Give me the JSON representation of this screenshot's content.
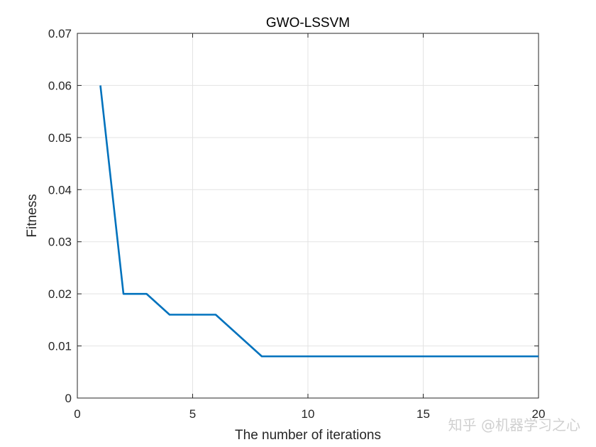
{
  "chart_data": {
    "type": "line",
    "title": "GWO-LSSVM",
    "xlabel": "The number of iterations",
    "ylabel": "Fitness",
    "xlim": [
      0,
      20
    ],
    "ylim": [
      0,
      0.07
    ],
    "xticks": [
      0,
      5,
      10,
      15,
      20
    ],
    "yticks": [
      0,
      0.01,
      0.02,
      0.03,
      0.04,
      0.05,
      0.06,
      0.07
    ],
    "xtick_labels": [
      "0",
      "5",
      "10",
      "15",
      "20"
    ],
    "ytick_labels": [
      "0",
      "0.01",
      "0.02",
      "0.03",
      "0.04",
      "0.05",
      "0.06",
      "0.07"
    ],
    "grid": true,
    "series": [
      {
        "x": [
          1,
          2,
          3,
          4,
          5,
          6,
          7,
          8,
          9,
          10,
          11,
          12,
          13,
          14,
          15,
          16,
          17,
          18,
          19,
          20
        ],
        "y": [
          0.06,
          0.02,
          0.02,
          0.016,
          0.016,
          0.016,
          0.012,
          0.008,
          0.008,
          0.008,
          0.008,
          0.008,
          0.008,
          0.008,
          0.008,
          0.008,
          0.008,
          0.008,
          0.008,
          0.008
        ],
        "color": "#0072bd"
      }
    ]
  },
  "watermark": "知乎 @机器学习之心"
}
